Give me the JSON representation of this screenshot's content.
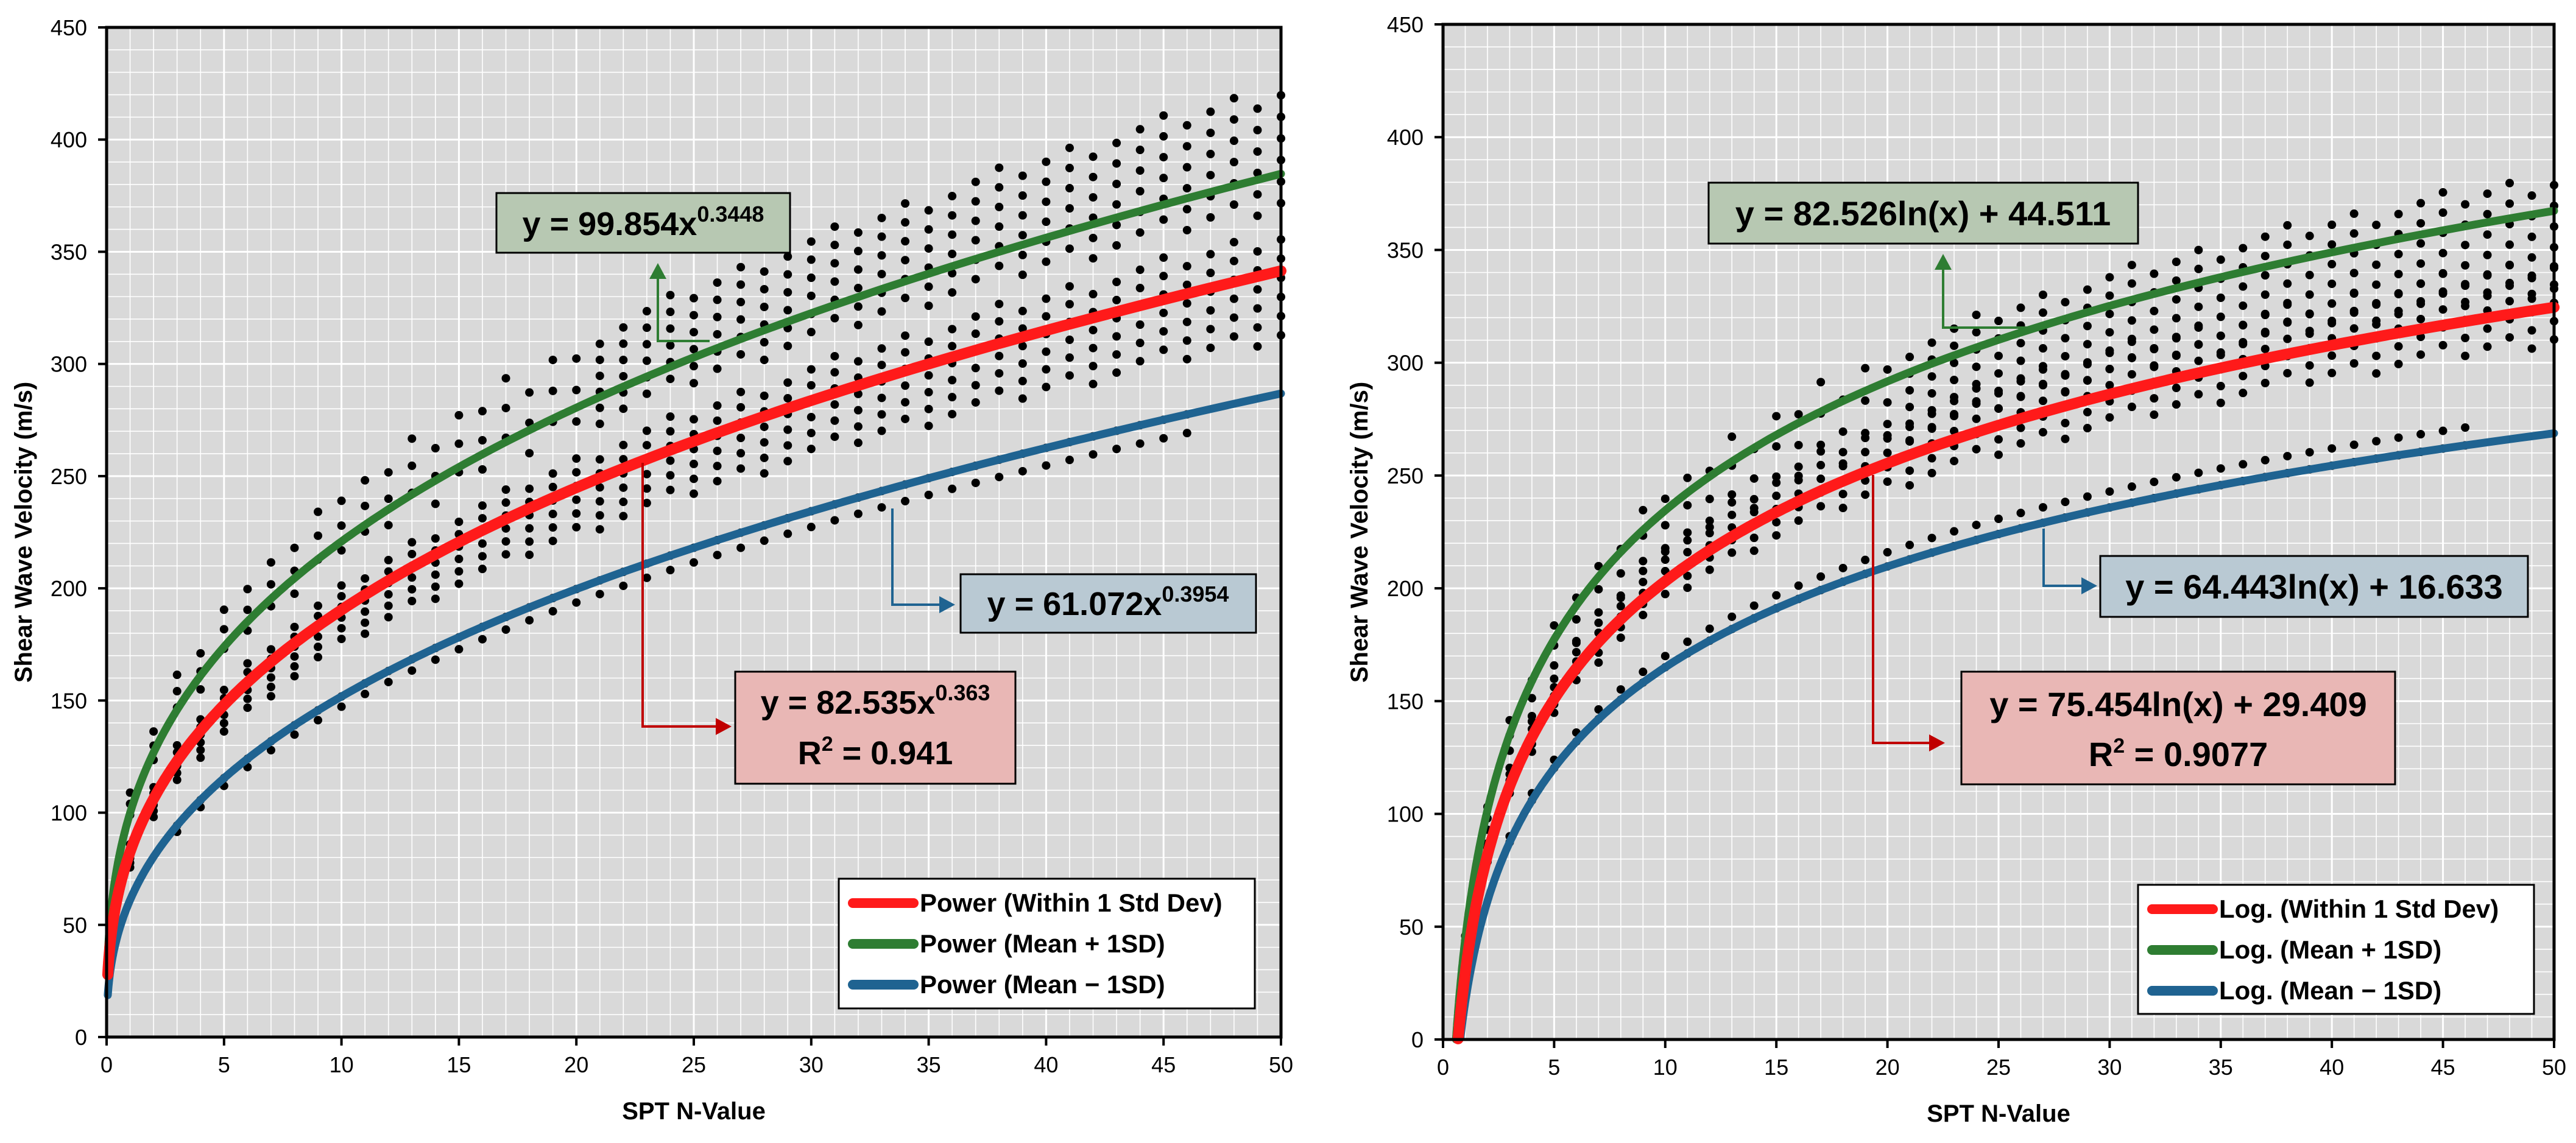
{
  "chart_data": [
    {
      "type": "scatter",
      "xlabel": "SPT N-Value",
      "ylabel": "Shear Wave Velocity (m/s)",
      "xlim": [
        0,
        50
      ],
      "ylim": [
        0,
        450
      ],
      "x_ticks": [
        0,
        5,
        10,
        15,
        20,
        25,
        30,
        35,
        40,
        45,
        50
      ],
      "y_ticks": [
        0,
        50,
        100,
        150,
        200,
        250,
        300,
        350,
        400,
        450
      ],
      "grid": true,
      "legend_position": "bottom-right",
      "colors": {
        "within": "#ff1a1a",
        "plus": "#2e7d32",
        "minus": "#1f6391",
        "points": "#000000"
      },
      "series": [
        {
          "name": "Power (Within 1 Std Dev)",
          "model": "power",
          "a": 82.535,
          "b": 0.363,
          "x_range": [
            0.05,
            50
          ],
          "color": "#ff1a1a"
        },
        {
          "name": "Power (Mean + 1SD)",
          "model": "power",
          "a": 99.854,
          "b": 0.3448,
          "x_range": [
            0.05,
            50
          ],
          "color": "#2e7d32"
        },
        {
          "name": "Power (Mean − 1SD)",
          "model": "power",
          "a": 61.072,
          "b": 0.3954,
          "x_range": [
            0.05,
            50
          ],
          "color": "#1f6391"
        }
      ],
      "scatter_bands": {
        "upper_factors": [
          0.97,
          0.995,
          1.02,
          1.045,
          1.07,
          1.095
        ],
        "mid_factors": [
          0.92,
          0.945,
          0.97,
          0.995,
          1.02,
          1.045
        ],
        "lower_factors": [
          0.97,
          1.0
        ],
        "upper_ref": "plus",
        "mid_ref": "within",
        "lower_ref": "minus",
        "x_start": 1,
        "x_end": 50,
        "x_step": 1,
        "lower_x_start": 3,
        "lower_x_end": 46
      },
      "annotations": {
        "plus": {
          "base": "y = 99.854x",
          "sup": "0.3448"
        },
        "minus": {
          "base": "y = 61.072x",
          "sup": "0.3954"
        },
        "within": {
          "base": "y = 82.535x",
          "sup": "0.363",
          "r2_base": "R",
          "r2_sup": "2",
          "r2_val": " = 0.941"
        }
      }
    },
    {
      "type": "scatter",
      "xlabel": "SPT N-Value",
      "ylabel": "Shear Wave Velocity (m/s)",
      "xlim": [
        0,
        50
      ],
      "ylim": [
        0,
        450
      ],
      "x_ticks": [
        0,
        5,
        10,
        15,
        20,
        25,
        30,
        35,
        40,
        45,
        50
      ],
      "y_ticks": [
        0,
        50,
        100,
        150,
        200,
        250,
        300,
        350,
        400,
        450
      ],
      "grid": true,
      "legend_position": "bottom-right",
      "colors": {
        "within": "#ff1a1a",
        "plus": "#2e7d32",
        "minus": "#1f6391",
        "points": "#000000"
      },
      "series": [
        {
          "name": "Log. (Within 1 Std Dev)",
          "model": "log",
          "a": 75.454,
          "b": 29.409,
          "x_range": [
            0.68,
            50
          ],
          "color": "#ff1a1a"
        },
        {
          "name": "Log. (Mean + 1SD)",
          "model": "log",
          "a": 82.526,
          "b": 44.511,
          "x_range": [
            0.58,
            50
          ],
          "color": "#2e7d32"
        },
        {
          "name": "Log. (Mean − 1SD)",
          "model": "log",
          "a": 64.443,
          "b": 16.633,
          "x_range": [
            0.78,
            50
          ],
          "color": "#1f6391"
        }
      ],
      "scatter_bands": {
        "upper_factors": [
          0.91,
          0.935,
          0.96,
          0.985,
          1.01,
          1.035
        ],
        "mid_factors": [
          0.96,
          0.985,
          1.01,
          1.035,
          1.06
        ],
        "lower_factors": [
          1.0,
          1.03
        ],
        "upper_ref": "plus",
        "mid_ref": "within",
        "lower_ref": "minus",
        "x_start": 1,
        "x_end": 50,
        "x_step": 1,
        "lower_x_start": 3,
        "lower_x_end": 46
      },
      "annotations": {
        "plus": {
          "base": "y = 82.526ln(x) + 44.511",
          "sup": ""
        },
        "minus": {
          "base": "y = 64.443ln(x) + 16.633",
          "sup": ""
        },
        "within": {
          "base": "y = 75.454ln(x) + 29.409",
          "sup": "",
          "r2_base": "R",
          "r2_sup": "2",
          "r2_val": " = 0.9077"
        }
      }
    }
  ]
}
